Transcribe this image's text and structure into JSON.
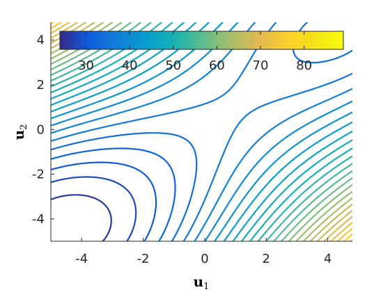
{
  "chart_data": {
    "type": "contour",
    "title": "",
    "xlabel": {
      "main": "u",
      "subscript": "1"
    },
    "ylabel": {
      "main": "u",
      "subscript": "2"
    },
    "xlim": [
      -5,
      4.8
    ],
    "ylim": [
      -5,
      4.8
    ],
    "x_ticks": [
      -4,
      -2,
      0,
      2,
      4
    ],
    "y_ticks": [
      -4,
      -2,
      0,
      2,
      4
    ],
    "x_tick_labels": [
      "-4",
      "-2",
      "0",
      "2",
      "4"
    ],
    "y_tick_labels": [
      "-4",
      "-2",
      "0",
      "2",
      "4"
    ],
    "colorbar": {
      "placement": "top-inside",
      "colormap": "parula",
      "range": [
        24,
        89
      ],
      "ticks": [
        30,
        40,
        50,
        60,
        70,
        80
      ],
      "tick_labels": [
        "30",
        "40",
        "50",
        "60",
        "70",
        "80"
      ]
    },
    "contour_levels": [
      24,
      26,
      28,
      30,
      32,
      34,
      36,
      38,
      40,
      42,
      44,
      46,
      48,
      50,
      52,
      54,
      56,
      58,
      60,
      62,
      64,
      66,
      68,
      70,
      72,
      74,
      76,
      78,
      80,
      82,
      84,
      86,
      88
    ],
    "saddle_point": [
      0,
      0.3
    ],
    "local_minima": [
      [
        -4,
        -2.7
      ],
      [
        2.6,
        2.4
      ]
    ],
    "grid": false
  }
}
